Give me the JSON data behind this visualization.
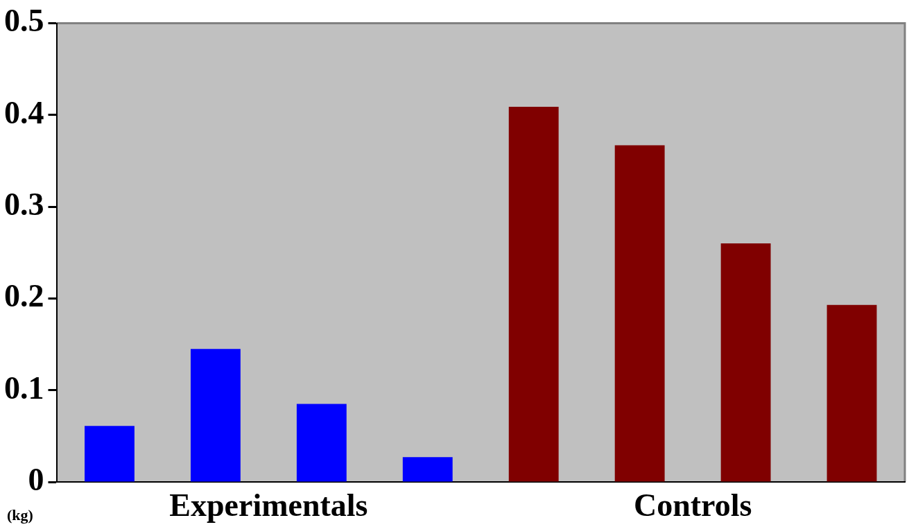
{
  "chart_data": {
    "type": "bar",
    "ylabel": "(kg)",
    "categories": [
      null,
      null,
      null,
      null,
      null,
      null,
      null,
      null
    ],
    "values": [
      0.061,
      0.145,
      0.085,
      0.027,
      0.409,
      0.367,
      0.26,
      0.193
    ],
    "colors": [
      "#0000ff",
      "#0000ff",
      "#0000ff",
      "#0000ff",
      "#800000",
      "#800000",
      "#800000",
      "#800000"
    ],
    "ylim": [
      0,
      0.5
    ],
    "yticks": [
      0,
      0.1,
      0.2,
      0.3,
      0.4,
      0.5
    ],
    "annotations": [
      "Experimentals",
      "Controls"
    ],
    "grid": false,
    "legend": false
  }
}
